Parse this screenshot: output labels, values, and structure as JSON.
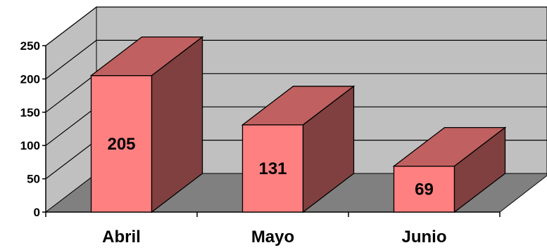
{
  "chart_data": {
    "type": "bar",
    "style": "3d-column",
    "title": "",
    "xlabel": "",
    "ylabel": "",
    "categories": [
      "Abril",
      "Mayo",
      "Junio"
    ],
    "values": [
      205,
      131,
      69
    ],
    "ylim": [
      0,
      250
    ],
    "yticks": [
      "0",
      "50",
      "100",
      "150",
      "200",
      "250"
    ],
    "grid": true,
    "legend": "none",
    "colors": {
      "bar_front": "#ff8080",
      "bar_top": "#c06060",
      "bar_side": "#804040",
      "back_wall": "#c0c0c0",
      "side_wall": "#c0c0c0",
      "floor": "#808080",
      "gridline": "#000000"
    }
  }
}
